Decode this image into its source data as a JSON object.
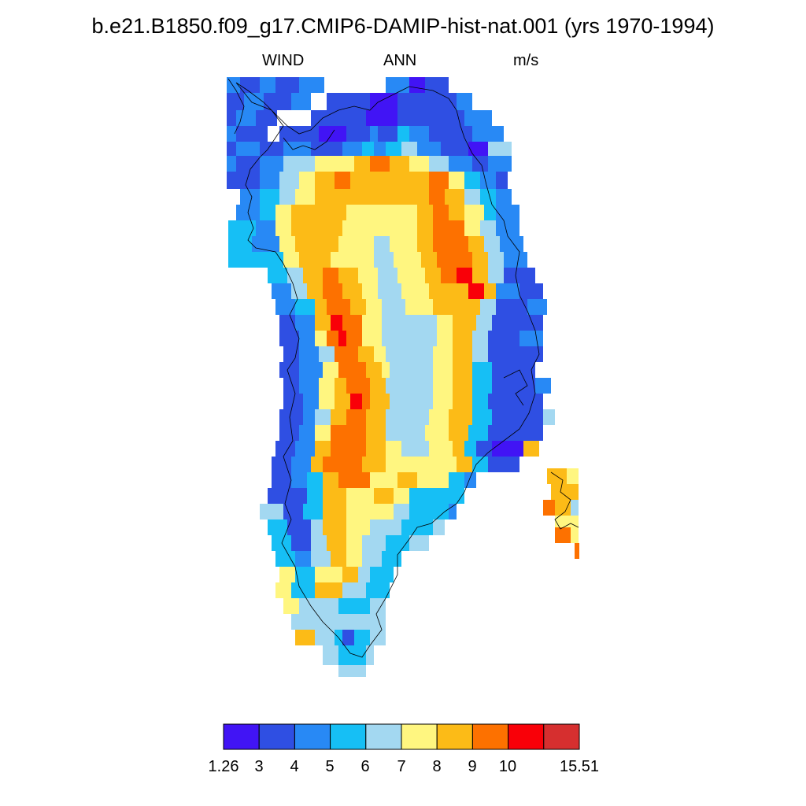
{
  "title": "b.e21.B1850.f09_g17.CMIP6-DAMIP-hist-nat.001 (yrs 1970-1994)",
  "left_string": "WIND",
  "center_string": "ANN",
  "right_string": "m/s",
  "colorbar": {
    "colors": [
      "#4114f5",
      "#2f4fe3",
      "#2889f5",
      "#16bff5",
      "#a3d8f1",
      "#fff680",
      "#fcbb17",
      "#fd7100",
      "#f90008",
      "#d62f2f"
    ],
    "labels": [
      "1.26",
      "3",
      "4",
      "5",
      "6",
      "7",
      "8",
      "9",
      "10",
      "15.51"
    ]
  },
  "map": {
    "description_classes": "0..9 index into colorbar colors"
  }
}
